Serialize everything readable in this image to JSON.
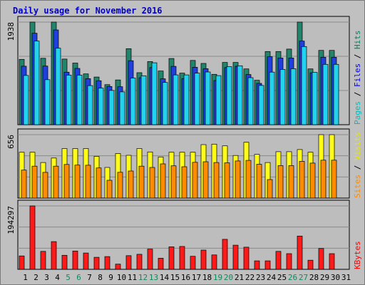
{
  "title": "Daily usage for November 2016",
  "colors": {
    "hits": "#21846b",
    "files": "#1f3fdf",
    "pages": "#22d3ef",
    "visits": "#fffc1a",
    "sites": "#ff8c00",
    "kbytes": "#ff1a1a",
    "title": "#0000c8",
    "background": "#c0c0c0",
    "plot_background": "#bdbdbd",
    "grid": "#8a8a8a",
    "weekend_day": "#0f8a5a"
  },
  "chart_data": [
    {
      "id": "top",
      "type": "bar",
      "ytick_label": "1938",
      "ymax": 1938,
      "side_label": [
        {
          "text": "Pages",
          "color": "#00bfbf"
        },
        {
          "text": " / ",
          "color": "#000000"
        },
        {
          "text": "Files",
          "color": "#0000ff"
        },
        {
          "text": " / ",
          "color": "#000000"
        },
        {
          "text": "Hits",
          "color": "#008060"
        }
      ],
      "series": [
        {
          "name": "Hits",
          "values": [
            1234,
            1938,
            1254,
            1938,
            1239,
            1164,
            960,
            900,
            756,
            845,
            1436,
            983,
            1193,
            1015,
            1250,
            975,
            1214,
            1158,
            952,
            1176,
            1176,
            1054,
            840,
            1382,
            1382,
            1428,
            1938,
            1054,
            1404,
            1404
          ]
        },
        {
          "name": "Files",
          "values": [
            1105,
            1728,
            1108,
            1790,
            992,
            1063,
            869,
            830,
            722,
            718,
            1208,
            887,
            1080,
            867,
            1102,
            871,
            1085,
            1058,
            835,
            1080,
            1104,
            948,
            780,
            1284,
            1260,
            1260,
            1580,
            980,
            1275,
            1275
          ]
        },
        {
          "name": "Pages",
          "values": [
            930,
            1580,
            850,
            1446,
            937,
            937,
            739,
            691,
            648,
            621,
            882,
            925,
            1170,
            798,
            941,
            941,
            975,
            996,
            927,
            1097,
            1113,
            888,
            741,
            993,
            1045,
            1058,
            1476,
            988,
            1140,
            1140
          ]
        }
      ]
    },
    {
      "id": "middle",
      "type": "bar",
      "ytick_label": "656",
      "ymax": 656,
      "side_label": [
        {
          "text": "Sites",
          "color": "#ff8c00"
        },
        {
          "text": " / ",
          "color": "#000000"
        },
        {
          "text": "Visits",
          "color": "#e6e600"
        }
      ],
      "series": [
        {
          "name": "Visits",
          "values": [
            474,
            474,
            368,
            414,
            512,
            512,
            512,
            432,
            317,
            461,
            442,
            512,
            477,
            425,
            474,
            474,
            474,
            553,
            558,
            540,
            441,
            577,
            452,
            368,
            480,
            480,
            502,
            474,
            656,
            656
          ]
        },
        {
          "name": "Sites",
          "values": [
            290,
            330,
            266,
            330,
            348,
            341,
            340,
            312,
            184,
            267,
            280,
            330,
            317,
            354,
            334,
            324,
            370,
            376,
            368,
            365,
            384,
            390,
            350,
            192,
            336,
            336,
            380,
            362,
            392,
            392
          ]
        }
      ]
    },
    {
      "id": "bottom",
      "type": "bar",
      "ytick_label": "194297",
      "ymax": 194297,
      "side_label": [
        {
          "text": "KBytes",
          "color": "#ff0000"
        }
      ],
      "series": [
        {
          "name": "KBytes",
          "values": [
            41000,
            194297,
            55000,
            85000,
            43000,
            56000,
            50000,
            37000,
            39000,
            16000,
            42000,
            46000,
            62000,
            34000,
            69000,
            70000,
            40000,
            59000,
            44000,
            92000,
            74000,
            68000,
            26000,
            26000,
            55000,
            48000,
            102000,
            28000,
            64000,
            48000
          ]
        }
      ]
    }
  ],
  "x_axis": {
    "days": [
      "1",
      "2",
      "3",
      "4",
      "5",
      "6",
      "7",
      "8",
      "9",
      "10",
      "11",
      "12",
      "13",
      "14",
      "15",
      "16",
      "17",
      "18",
      "19",
      "20",
      "21",
      "22",
      "23",
      "24",
      "25",
      "26",
      "27",
      "28",
      "29",
      "30",
      "31"
    ],
    "weekend_days": [
      "5",
      "6",
      "12",
      "13",
      "19",
      "20",
      "26",
      "27"
    ]
  }
}
